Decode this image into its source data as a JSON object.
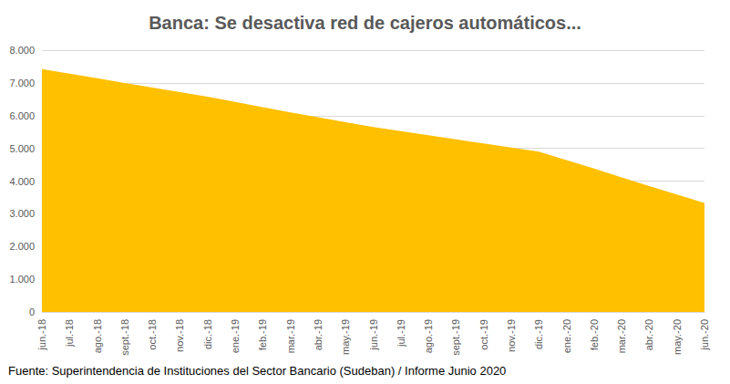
{
  "chart_data": {
    "type": "area",
    "title": "Banca: Se desactiva red de cajeros automáticos...",
    "annotations": [
      "Fuente: Superintendencia de Instituciones del Sector Bancario (Sudeban) / Informe Junio 2020"
    ],
    "categories": [
      "jun.-18",
      "jul.-18",
      "ago.-18",
      "sept.-18",
      "oct.-18",
      "nov.-18",
      "dic.-18",
      "ene.-19",
      "feb.-19",
      "mar.-19",
      "abr.-19",
      "may.-19",
      "jun.-19",
      "jul.-19",
      "ago.-19",
      "sept.-19",
      "oct.-19",
      "nov.-19",
      "dic.-19",
      "ene.-20",
      "feb.-20",
      "mar.-20",
      "abr.-20",
      "may.-20",
      "jun.-20"
    ],
    "values": [
      7420,
      7280,
      7140,
      7000,
      6860,
      6720,
      6580,
      6420,
      6260,
      6100,
      5950,
      5800,
      5650,
      5525,
      5400,
      5275,
      5150,
      5025,
      4900,
      4640,
      4380,
      4110,
      3850,
      3590,
      3330
    ],
    "color": "#ffc000",
    "ylim": [
      0,
      8000
    ],
    "yticks": [
      0,
      {
        "value": 1000,
        "label": "1.000"
      },
      {
        "value": 2000,
        "label": "2.000"
      },
      {
        "value": 3000,
        "label": "3.000"
      },
      {
        "value": 4000,
        "label": "4.000"
      },
      {
        "value": 5000,
        "label": "5.000"
      },
      {
        "value": 6000,
        "label": "6.000"
      },
      {
        "value": 7000,
        "label": "7.000"
      },
      {
        "value": 8000,
        "label": "8.000"
      }
    ],
    "grid": true
  }
}
